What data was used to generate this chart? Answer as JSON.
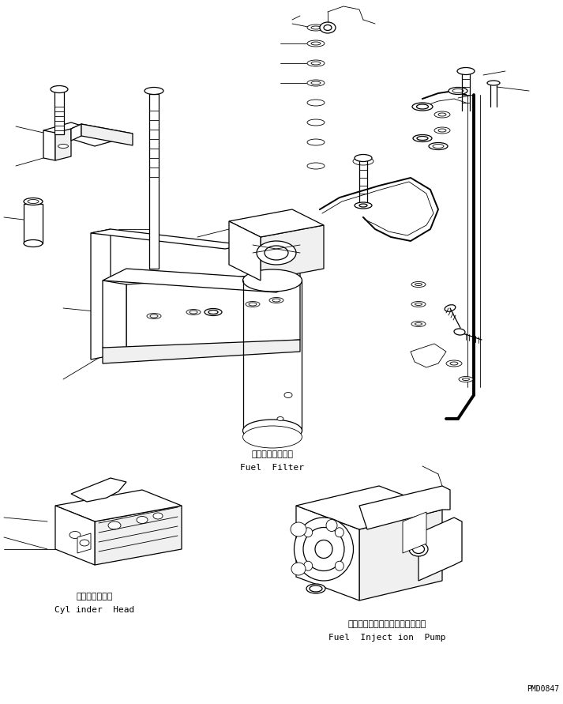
{
  "background_color": "#ffffff",
  "line_color": "#000000",
  "fig_width": 7.13,
  "fig_height": 8.91,
  "dpi": 100,
  "labels": {
    "fuel_filter_jp": "フェエルフィルタ",
    "fuel_filter_en": "Fuel  Filter",
    "cylinder_head_jp": "シリンダヘッド",
    "cylinder_head_en": "Cyl inder  Head",
    "fuel_injection_pump_jp": "フェエルインジェクションポンプ",
    "fuel_injection_pump_en": "Fuel  Inject ion  Pump",
    "part_number": "PMD0847"
  }
}
